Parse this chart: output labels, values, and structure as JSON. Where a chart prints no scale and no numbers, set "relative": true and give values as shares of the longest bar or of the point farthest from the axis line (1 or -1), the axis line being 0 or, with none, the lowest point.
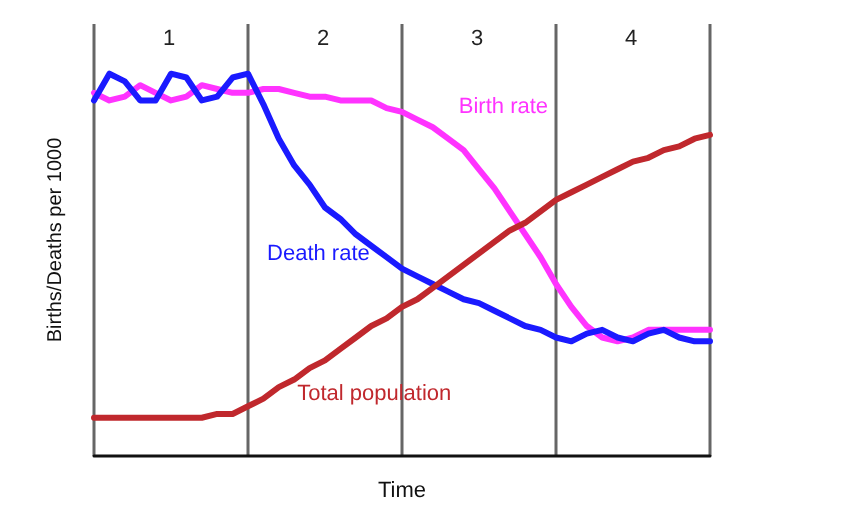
{
  "chart_data": {
    "type": "line",
    "relative": true,
    "xlabel": "Time",
    "ylabel": "Births/Deaths per 1000",
    "tick_labels": false,
    "grid": "x",
    "legend": false,
    "marker": "none",
    "line_style": "solid",
    "annotations": [
      "1",
      "2",
      "3",
      "4"
    ],
    "categories": [
      null,
      null,
      null,
      null,
      null,
      null,
      null,
      null,
      null,
      null,
      null,
      null,
      null,
      null,
      null,
      null,
      null,
      null,
      null,
      null,
      null,
      null,
      null,
      null,
      null,
      null,
      null,
      null,
      null,
      null,
      null,
      null,
      null,
      null,
      null,
      null,
      null,
      null,
      null,
      null,
      null
    ],
    "series": [
      {
        "name": "Birth rate",
        "color": "#ff33ff",
        "values": [
          0.95,
          0.93,
          0.94,
          0.97,
          0.95,
          0.93,
          0.94,
          0.97,
          0.96,
          0.95,
          0.95,
          0.96,
          0.96,
          0.95,
          0.94,
          0.94,
          0.93,
          0.93,
          0.93,
          0.91,
          0.9,
          0.88,
          0.86,
          0.83,
          0.8,
          0.75,
          0.7,
          0.64,
          0.58,
          0.52,
          0.45,
          0.39,
          0.34,
          0.31,
          0.3,
          0.31,
          0.33,
          0.33,
          0.33,
          0.33,
          0.33
        ]
      },
      {
        "name": "Death rate",
        "color": "#1a1aff",
        "values": [
          0.93,
          1,
          0.98,
          0.93,
          0.93,
          1,
          0.99,
          0.93,
          0.94,
          0.99,
          1,
          0.92,
          0.83,
          0.76,
          0.71,
          0.65,
          0.62,
          0.58,
          0.55,
          0.52,
          0.49,
          0.47,
          0.45,
          0.43,
          0.41,
          0.4,
          0.38,
          0.36,
          0.34,
          0.33,
          0.31,
          0.3,
          0.32,
          0.33,
          0.31,
          0.3,
          0.32,
          0.33,
          0.31,
          0.3,
          0.3
        ]
      },
      {
        "name": "Total population",
        "color": "#c0282d",
        "values": [
          0.1,
          0.1,
          0.1,
          0.1,
          0.1,
          0.1,
          0.1,
          0.1,
          0.11,
          0.11,
          0.13,
          0.15,
          0.18,
          0.2,
          0.23,
          0.25,
          0.28,
          0.31,
          0.34,
          0.36,
          0.39,
          0.41,
          0.44,
          0.47,
          0.5,
          0.53,
          0.56,
          0.59,
          0.61,
          0.64,
          0.67,
          0.69,
          0.71,
          0.73,
          0.75,
          0.77,
          0.78,
          0.8,
          0.81,
          0.83,
          0.84
        ]
      }
    ]
  }
}
